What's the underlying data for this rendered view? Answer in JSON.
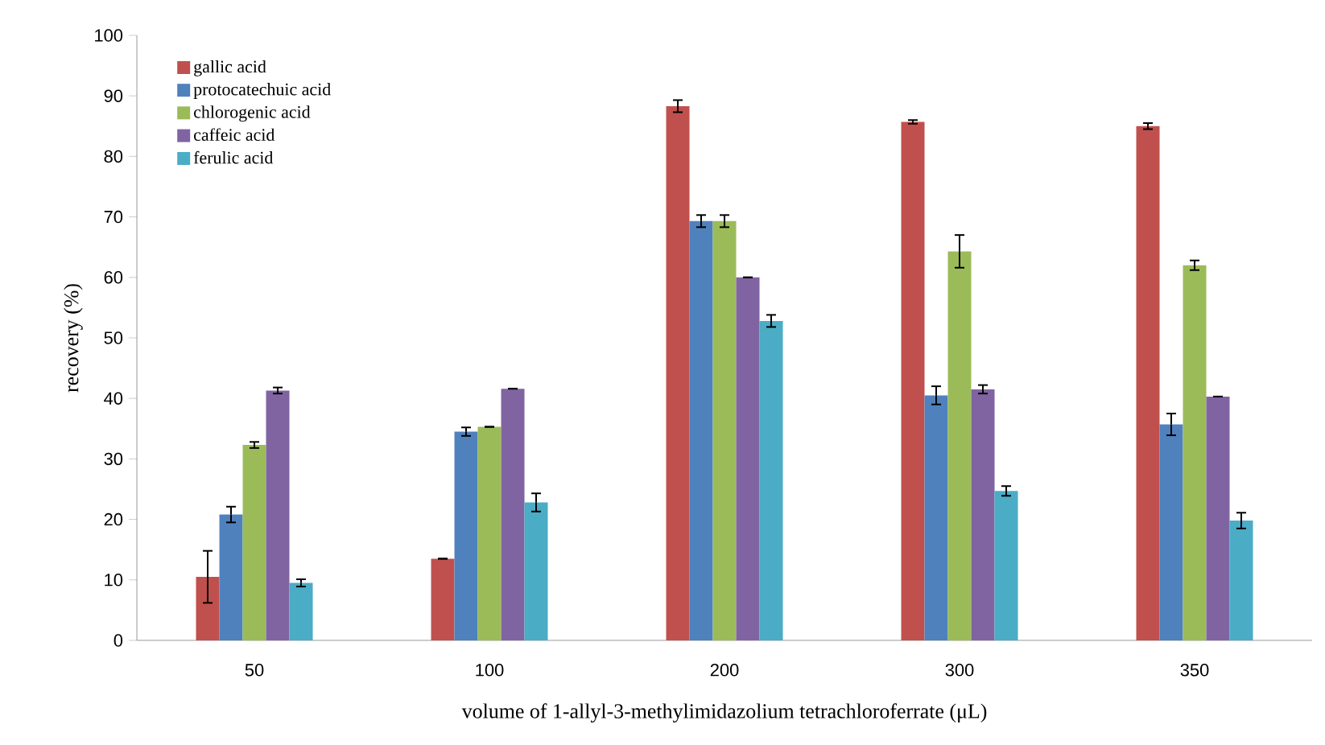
{
  "chart_data": {
    "type": "bar",
    "xlabel": "volume of 1-allyl-3-methylimidazolium tetrachloroferrate (μL)",
    "ylabel": "recovery (%)",
    "categories": [
      "50",
      "100",
      "200",
      "300",
      "350"
    ],
    "ylim": [
      0,
      100
    ],
    "yticks": [
      0,
      10,
      20,
      30,
      40,
      50,
      60,
      70,
      80,
      90,
      100
    ],
    "legend": "top left",
    "series": [
      {
        "name": "gallic acid",
        "color": "#c0504d",
        "values": [
          10.5,
          13.5,
          88.3,
          85.7,
          85.0
        ],
        "errors": [
          4.3,
          null,
          1.0,
          0.3,
          0.5
        ]
      },
      {
        "name": "protocatechuic acid",
        "color": "#4f81bd",
        "values": [
          20.8,
          34.5,
          69.3,
          40.5,
          35.7
        ],
        "errors": [
          1.3,
          0.7,
          1.0,
          1.5,
          1.8
        ]
      },
      {
        "name": "chlorogenic acid",
        "color": "#9bbb59",
        "values": [
          32.3,
          35.3,
          69.3,
          64.3,
          62.0
        ],
        "errors": [
          0.5,
          null,
          1.0,
          2.7,
          0.8
        ]
      },
      {
        "name": "caffeic acid",
        "color": "#8064a2",
        "values": [
          41.3,
          41.6,
          60.0,
          41.5,
          40.3
        ],
        "errors": [
          0.5,
          null,
          null,
          0.7,
          null
        ]
      },
      {
        "name": "ferulic acid",
        "color": "#4bacc6",
        "values": [
          9.5,
          22.8,
          52.8,
          24.7,
          19.8
        ],
        "errors": [
          0.6,
          1.5,
          1.0,
          0.8,
          1.3
        ]
      }
    ]
  }
}
